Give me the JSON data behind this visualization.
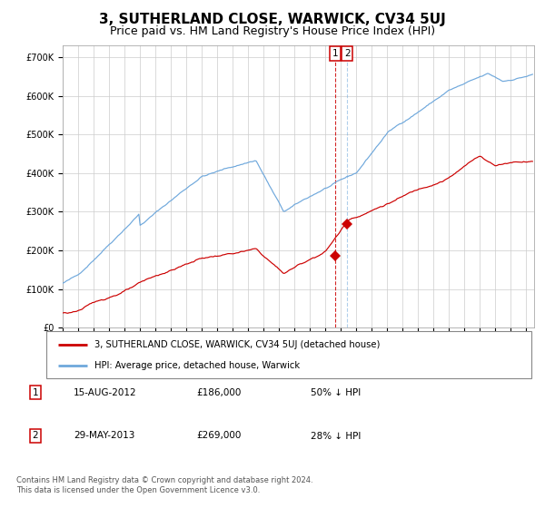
{
  "title": "3, SUTHERLAND CLOSE, WARWICK, CV34 5UJ",
  "subtitle": "Price paid vs. HM Land Registry's House Price Index (HPI)",
  "title_fontsize": 11,
  "subtitle_fontsize": 9,
  "ylim": [
    0,
    730000
  ],
  "yticks": [
    0,
    100000,
    200000,
    300000,
    400000,
    500000,
    600000,
    700000
  ],
  "hpi_color": "#6fa8dc",
  "price_color": "#cc0000",
  "marker_color": "#cc0000",
  "vline1_color": "#cc0000",
  "vline2_color": "#6fa8dc",
  "purchase1_date_num": 2012.617,
  "purchase1_price": 186000,
  "purchase2_date_num": 2013.41,
  "purchase2_price": 269000,
  "legend_entries": [
    {
      "label": "3, SUTHERLAND CLOSE, WARWICK, CV34 5UJ (detached house)",
      "color": "#cc0000"
    },
    {
      "label": "HPI: Average price, detached house, Warwick",
      "color": "#6fa8dc"
    }
  ],
  "table_rows": [
    {
      "num": "1",
      "date": "15-AUG-2012",
      "price": "£186,000",
      "hpi_rel": "50% ↓ HPI"
    },
    {
      "num": "2",
      "date": "29-MAY-2013",
      "price": "£269,000",
      "hpi_rel": "28% ↓ HPI"
    }
  ],
  "footer": "Contains HM Land Registry data © Crown copyright and database right 2024.\nThis data is licensed under the Open Government Licence v3.0.",
  "background_color": "#ffffff",
  "grid_color": "#cccccc"
}
